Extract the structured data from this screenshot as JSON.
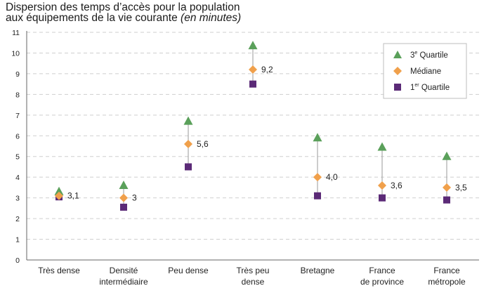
{
  "chart_data": {
    "type": "scatter",
    "title_line1": "Dispersion des temps d’accès pour la population",
    "title_line2": "aux équipements de la vie courante",
    "title_italic": "(en minutes)",
    "categories": [
      [
        "Très dense"
      ],
      [
        "Densité",
        "intermédiaire"
      ],
      [
        "Peu dense"
      ],
      [
        "Très peu",
        "dense"
      ],
      [
        "Bretagne"
      ],
      [
        "France",
        "de province"
      ],
      [
        "France",
        "métropole"
      ]
    ],
    "series": [
      {
        "name_base": "3",
        "name_sup": "e",
        "name_rest": " Quartile",
        "marker": "triangle",
        "color": "#5aa05a",
        "values": [
          3.3,
          3.6,
          6.7,
          10.35,
          5.9,
          5.45,
          5.0
        ]
      },
      {
        "name_base": "Médiane",
        "name_sup": "",
        "name_rest": "",
        "marker": "diamond",
        "color": "#f0a04b",
        "values": [
          3.1,
          3.0,
          5.6,
          9.2,
          4.0,
          3.6,
          3.5
        ]
      },
      {
        "name_base": "1",
        "name_sup": "er",
        "name_rest": " Quartile",
        "marker": "square",
        "color": "#5b2a77",
        "values": [
          3.05,
          2.55,
          4.5,
          8.5,
          3.1,
          3.0,
          2.9
        ]
      }
    ],
    "median_labels": [
      "3,1",
      "3",
      "5,6",
      "9,2",
      "4,0",
      "3,6",
      "3,5"
    ],
    "ylim": [
      0,
      11
    ],
    "yticks": [
      "0",
      "1",
      "2",
      "3",
      "4",
      "5",
      "6",
      "7",
      "8",
      "9",
      "10",
      "11"
    ],
    "grid": true,
    "legend_position": "top-right"
  }
}
